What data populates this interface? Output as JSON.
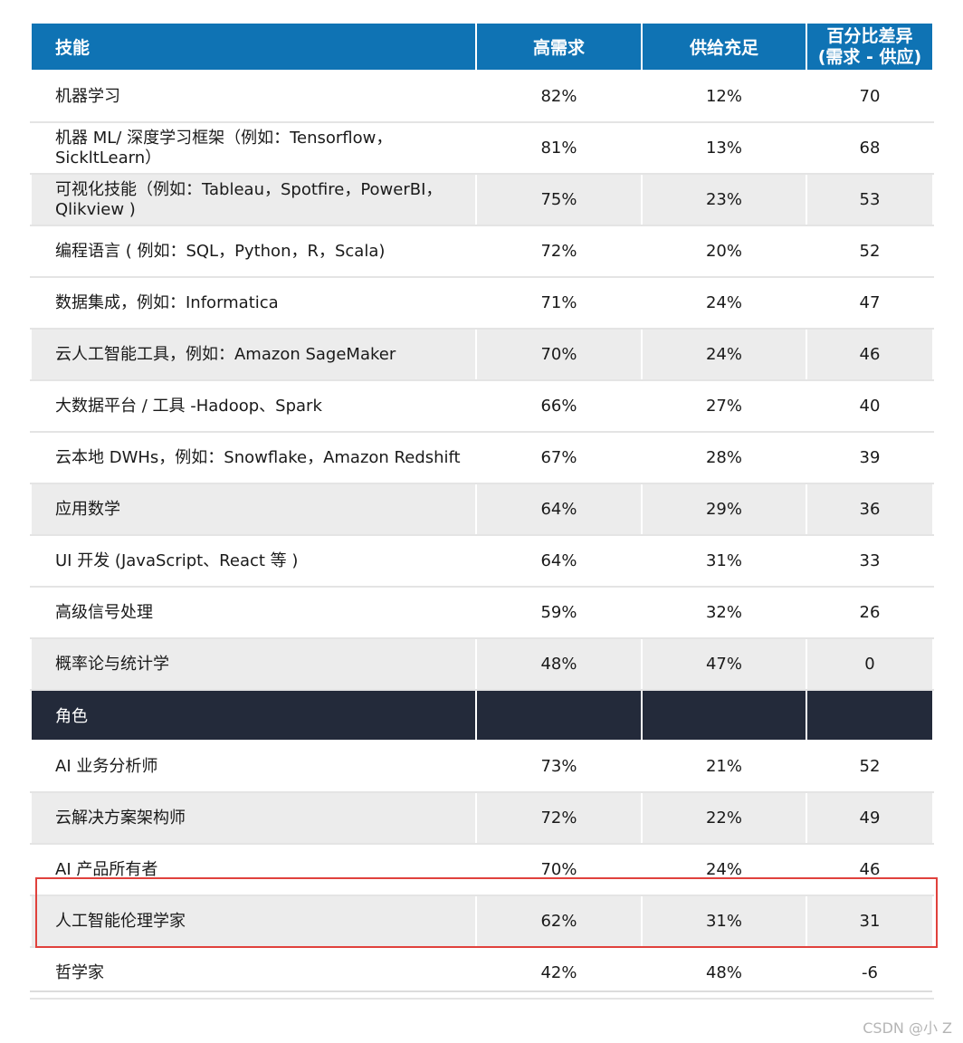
{
  "headers": {
    "skill": "技能",
    "demand": "高需求",
    "supply": "供给充足",
    "diff_line1": "百分比差异",
    "diff_line2": "(需求 - 供应)"
  },
  "skills": [
    {
      "name": "机器学习",
      "demand": "82%",
      "supply": "12%",
      "diff": "70"
    },
    {
      "name_line1": "机器 ML/ 深度学习框架（例如：Tensorflow，",
      "name_line2": "SickltLearn）",
      "demand": "81%",
      "supply": "13%",
      "diff": "68"
    },
    {
      "name_line1": "可视化技能（例如：Tableau，Spotfire，PowerBI，",
      "name_line2": "Qlikview )",
      "demand": "75%",
      "supply": "23%",
      "diff": "53"
    },
    {
      "name": "编程语言 ( 例如：SQL，Python，R，Scala)",
      "demand": "72%",
      "supply": "20%",
      "diff": "52"
    },
    {
      "name": "数据集成，例如：Informatica",
      "demand": "71%",
      "supply": "24%",
      "diff": "47"
    },
    {
      "name": "云人工智能工具，例如：Amazon SageMaker",
      "demand": "70%",
      "supply": "24%",
      "diff": "46"
    },
    {
      "name": "大数据平台 / 工具 -Hadoop、Spark",
      "demand": "66%",
      "supply": "27%",
      "diff": "40"
    },
    {
      "name": "云本地 DWHs，例如：Snowflake，Amazon Redshift",
      "demand": "67%",
      "supply": "28%",
      "diff": "39"
    },
    {
      "name": "应用数学",
      "demand": "64%",
      "supply": "29%",
      "diff": "36"
    },
    {
      "name": "UI 开发 (JavaScript、React 等 )",
      "demand": "64%",
      "supply": "31%",
      "diff": "33"
    },
    {
      "name": "高级信号处理",
      "demand": "59%",
      "supply": "32%",
      "diff": "26"
    },
    {
      "name": "概率论与统计学",
      "demand": "48%",
      "supply": "47%",
      "diff": "0"
    }
  ],
  "roles_section": {
    "label": "角色"
  },
  "roles": [
    {
      "name": "AI 业务分析师",
      "demand": "73%",
      "supply": "21%",
      "diff": "52"
    },
    {
      "name": "云解决方案架构师",
      "demand": "72%",
      "supply": "22%",
      "diff": "49"
    },
    {
      "name": "AI 产品所有者",
      "demand": "70%",
      "supply": "24%",
      "diff": "46"
    },
    {
      "name": "人工智能伦理学家",
      "demand": "62%",
      "supply": "31%",
      "diff": "31"
    },
    {
      "name": "哲学家",
      "demand": "42%",
      "supply": "48%",
      "diff": "-6"
    }
  ],
  "colors": {
    "header_bg": "#0f73b4",
    "section_bg": "#232a3a",
    "shade_bg": "#ececec",
    "highlight_border": "#e0413c"
  },
  "watermark": "CSDN @小 Z"
}
